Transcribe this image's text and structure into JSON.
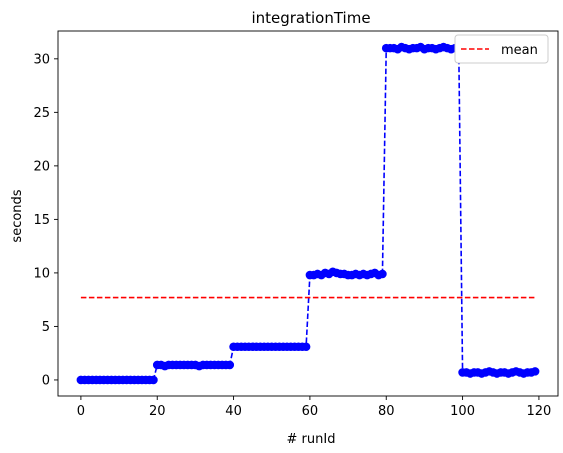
{
  "chart_data": {
    "type": "line",
    "title": "integrationTime",
    "xlabel": "# runId",
    "ylabel": "seconds",
    "xlim": [
      -6,
      125
    ],
    "ylim": [
      -1.5,
      32.6
    ],
    "xticks": [
      0,
      20,
      40,
      60,
      80,
      100,
      120
    ],
    "yticks": [
      0,
      5,
      10,
      15,
      20,
      25,
      30
    ],
    "grid": false,
    "legend": {
      "position": "top-right",
      "entries": [
        "mean"
      ]
    },
    "series": [
      {
        "style": "dashed-line-with-circle-markers",
        "color": "#0000ff",
        "segments": [
          {
            "x_start": 0,
            "x_end": 19,
            "values": [
              0.0,
              0.0,
              0.0,
              0.0,
              0.0,
              0.0,
              0.0,
              0.0,
              0.0,
              0.0,
              0.0,
              0.0,
              0.0,
              0.0,
              0.0,
              0.0,
              0.0,
              0.0,
              0.0,
              0.0
            ]
          },
          {
            "x_start": 20,
            "x_end": 39,
            "values": [
              1.4,
              1.4,
              1.3,
              1.4,
              1.4,
              1.4,
              1.4,
              1.4,
              1.4,
              1.4,
              1.4,
              1.3,
              1.4,
              1.4,
              1.4,
              1.4,
              1.4,
              1.4,
              1.4,
              1.4
            ]
          },
          {
            "x_start": 40,
            "x_end": 59,
            "values": [
              3.1,
              3.1,
              3.1,
              3.1,
              3.1,
              3.1,
              3.1,
              3.1,
              3.1,
              3.1,
              3.1,
              3.1,
              3.1,
              3.1,
              3.1,
              3.1,
              3.1,
              3.1,
              3.1,
              3.1
            ]
          },
          {
            "x_start": 60,
            "x_end": 79,
            "values": [
              9.8,
              9.8,
              9.9,
              9.8,
              10.0,
              9.9,
              10.1,
              10.0,
              9.9,
              9.9,
              9.8,
              9.8,
              9.9,
              9.8,
              9.9,
              9.8,
              9.9,
              10.0,
              9.8,
              9.9
            ]
          },
          {
            "x_start": 80,
            "x_end": 99,
            "values": [
              31.0,
              31.0,
              31.0,
              30.9,
              31.1,
              31.0,
              30.9,
              31.0,
              31.0,
              31.1,
              30.9,
              31.0,
              31.0,
              30.9,
              31.0,
              31.1,
              31.0,
              30.9,
              31.0,
              31.0
            ]
          },
          {
            "x_start": 100,
            "x_end": 119,
            "values": [
              0.7,
              0.7,
              0.6,
              0.7,
              0.7,
              0.6,
              0.7,
              0.8,
              0.7,
              0.6,
              0.7,
              0.7,
              0.6,
              0.7,
              0.8,
              0.7,
              0.6,
              0.7,
              0.7,
              0.8
            ]
          }
        ]
      },
      {
        "name": "mean",
        "style": "dashed-line",
        "color": "#ff0000",
        "x": [
          0,
          119
        ],
        "values": [
          7.7,
          7.7
        ]
      }
    ]
  }
}
